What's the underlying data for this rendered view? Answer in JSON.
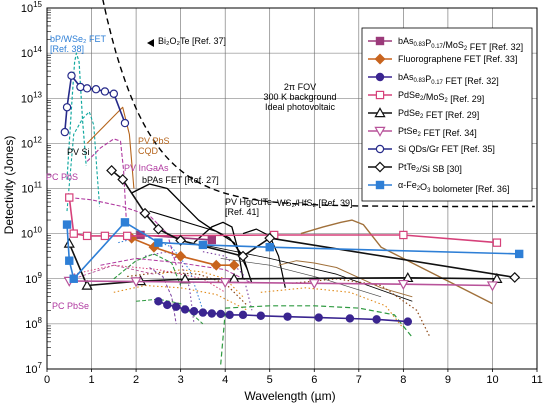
{
  "chart_data": {
    "type": "line",
    "xlabel": "Wavelength (µm)",
    "ylabel": "Detectivity (Jones)",
    "xlim": [
      0,
      11
    ],
    "ylim_log10": [
      7,
      15
    ],
    "yscale": "log",
    "grid": true,
    "legend_placement": "top-right",
    "x_ticks": [
      "0",
      "1",
      "2",
      "3",
      "4",
      "5",
      "6",
      "7",
      "8",
      "9",
      "10",
      "11"
    ],
    "y_tick_labels": [
      {
        "base": "10",
        "exp": "7"
      },
      {
        "base": "10",
        "exp": "8"
      },
      {
        "base": "10",
        "exp": "9"
      },
      {
        "base": "10",
        "exp": "10"
      },
      {
        "base": "10",
        "exp": "11"
      },
      {
        "base": "10",
        "exp": "12"
      },
      {
        "base": "10",
        "exp": "13"
      },
      {
        "base": "10",
        "exp": "14"
      },
      {
        "base": "10",
        "exp": "15"
      }
    ],
    "series": [
      {
        "name": "bAs0.83P0.17/MoS2 FET [Ref. 32]",
        "legend_parts": [
          [
            "bAs",
            ""
          ],
          [
            "0.83",
            "sub"
          ],
          [
            "P",
            ""
          ],
          [
            "0.17",
            "sub"
          ],
          [
            "/MoS",
            ""
          ],
          [
            "2",
            "sub"
          ],
          [
            " FET [Ref. 32]",
            ""
          ]
        ],
        "color": "#9b3a7a",
        "marker": "square",
        "fill": true,
        "x": [
          2.1,
          3.7
        ],
        "y": [
          9.97,
          9.86
        ]
      },
      {
        "name": "Fluorographene FET [Ref. 33]",
        "legend_parts": [
          [
            "Fluorographene FET [Ref. 33]",
            ""
          ]
        ],
        "color": "#c8641e",
        "marker": "diamond",
        "fill": true,
        "x": [
          1.9,
          2.4,
          3.0,
          3.8,
          4.2
        ],
        "y": [
          9.9,
          9.7,
          9.5,
          9.3,
          9.3
        ]
      },
      {
        "name": "bAs0.83P0.17 FET [Ref. 32]",
        "legend_parts": [
          [
            "bAs",
            ""
          ],
          [
            "0.83",
            "sub"
          ],
          [
            "P",
            ""
          ],
          [
            "0.17",
            "sub"
          ],
          [
            " FET [Ref. 32]",
            ""
          ]
        ],
        "color": "#3a2590",
        "marker": "circle",
        "fill": true,
        "x": [
          2.5,
          2.7,
          2.9,
          3.1,
          3.3,
          3.5,
          3.7,
          3.9,
          4.1,
          4.4,
          4.8,
          5.4,
          6.1,
          6.8,
          7.4,
          8.1
        ],
        "y": [
          8.5,
          8.42,
          8.38,
          8.32,
          8.28,
          8.25,
          8.23,
          8.22,
          8.2,
          8.2,
          8.18,
          8.16,
          8.14,
          8.12,
          8.1,
          8.05
        ]
      },
      {
        "name": "PdSe2/MoS2 [Ref. 29]",
        "legend_parts": [
          [
            "PdSe",
            ""
          ],
          [
            "2",
            "sub"
          ],
          [
            "/MoS",
            ""
          ],
          [
            "2",
            "sub"
          ],
          [
            " [Ref. 29]",
            ""
          ]
        ],
        "color": "#d6417a",
        "marker": "square",
        "fill": false,
        "x": [
          0.5,
          0.6,
          0.9,
          1.3,
          1.8,
          5.1,
          8.0,
          10.1
        ],
        "y": [
          10.8,
          10.0,
          9.95,
          9.95,
          9.95,
          9.97,
          9.97,
          9.8
        ]
      },
      {
        "name": "PdSe2 FET [Ref. 29]",
        "legend_parts": [
          [
            "PdSe",
            ""
          ],
          [
            "2",
            "sub"
          ],
          [
            " FET [Ref. 29]",
            ""
          ]
        ],
        "color": "#111111",
        "marker": "triangle",
        "fill": false,
        "x": [
          0.5,
          0.9,
          2.1,
          3.1,
          4.2,
          8.1,
          10.1
        ],
        "y": [
          9.78,
          8.85,
          8.95,
          8.99,
          9.0,
          9.02,
          9.0
        ]
      },
      {
        "name": "PtSe2 FET [Ref. 34]",
        "legend_parts": [
          [
            "PtSe",
            ""
          ],
          [
            "2",
            "sub"
          ],
          [
            " FET [Ref. 34]",
            ""
          ]
        ],
        "color": "#b8539a",
        "marker": "triangle-down",
        "fill": false,
        "x": [
          0.5,
          2.0,
          4.0,
          6.0,
          8.0,
          10.0
        ],
        "y": [
          8.95,
          8.94,
          8.92,
          8.9,
          8.88,
          8.85
        ]
      },
      {
        "name": "Si QDs/Gr FET [Ref. 35]",
        "legend_parts": [
          [
            "Si QDs/Gr FET [Ref. 35]",
            ""
          ]
        ],
        "color": "#262a8a",
        "marker": "circle",
        "fill": false,
        "x": [
          0.4,
          0.45,
          0.55,
          0.75,
          0.9,
          1.1,
          1.3,
          1.5,
          1.75
        ],
        "y": [
          12.25,
          12.8,
          13.5,
          13.25,
          13.22,
          13.2,
          13.15,
          13.1,
          12.45
        ]
      },
      {
        "name": "PtTe2/Si SB [30]",
        "legend_parts": [
          [
            "PtTe",
            ""
          ],
          [
            "2",
            "sub"
          ],
          [
            "/Si SB [30]",
            ""
          ]
        ],
        "color": "#111111",
        "marker": "diamond",
        "fill": false,
        "x": [
          1.45,
          1.7,
          2.2,
          2.5,
          3.0,
          4.4,
          5.0,
          10.5
        ],
        "y": [
          11.4,
          11.2,
          10.45,
          10.1,
          9.85,
          9.5,
          9.9,
          9.03
        ]
      },
      {
        "name": "α-Fe2O3 bolometer [Ref. 36]",
        "legend_parts": [
          [
            "α-Fe",
            ""
          ],
          [
            "2",
            "sub"
          ],
          [
            "O",
            ""
          ],
          [
            "3",
            "sub"
          ],
          [
            " bolometer [Ref. 36]",
            ""
          ]
        ],
        "color": "#2e7fd6",
        "marker": "square",
        "fill": true,
        "x": [
          0.45,
          0.5,
          0.6,
          1.75,
          2.5,
          3.5,
          5.0,
          10.6
        ],
        "y": [
          10.2,
          9.4,
          9.0,
          10.25,
          9.8,
          9.75,
          9.7,
          9.55
        ]
      }
    ],
    "annotations": [
      {
        "id": "bp-wse",
        "text": "bP/WSe₂ FET",
        "text2": "[Ref. 38]",
        "color": "#2e7fd6"
      },
      {
        "id": "bi2o2te",
        "text": "Bi₂O₂Te [Ref. 37]",
        "color": "#000000"
      },
      {
        "id": "fov",
        "text": "2π FOV",
        "text2": "300 K background",
        "text3": "Ideal photovoltaic",
        "color": "#000000"
      },
      {
        "id": "pv-pbs",
        "text": "PV PbS",
        "text2": "CQD",
        "color": "#b5651d"
      },
      {
        "id": "pv-si",
        "text": "PV Si",
        "color": "#000000"
      },
      {
        "id": "pv-ingaas",
        "text": "PV InGaAs",
        "color": "#b03aa0"
      },
      {
        "id": "pc-pbs",
        "text": "PC PbS",
        "color": "#b03aa0"
      },
      {
        "id": "bpas",
        "text": "bPAs FET [Ref. 27]",
        "color": "#000000"
      },
      {
        "id": "pv-hgcdte",
        "text": "PV HgCdTe",
        "text2": "[Ref. 41]",
        "color": "#000000"
      },
      {
        "id": "ws2",
        "text": "WS₂/HfS₂ [Ref. 39]",
        "color": "#000000"
      },
      {
        "id": "pc-pbse",
        "text": "PC PbSe",
        "color": "#b03aa0"
      }
    ]
  }
}
